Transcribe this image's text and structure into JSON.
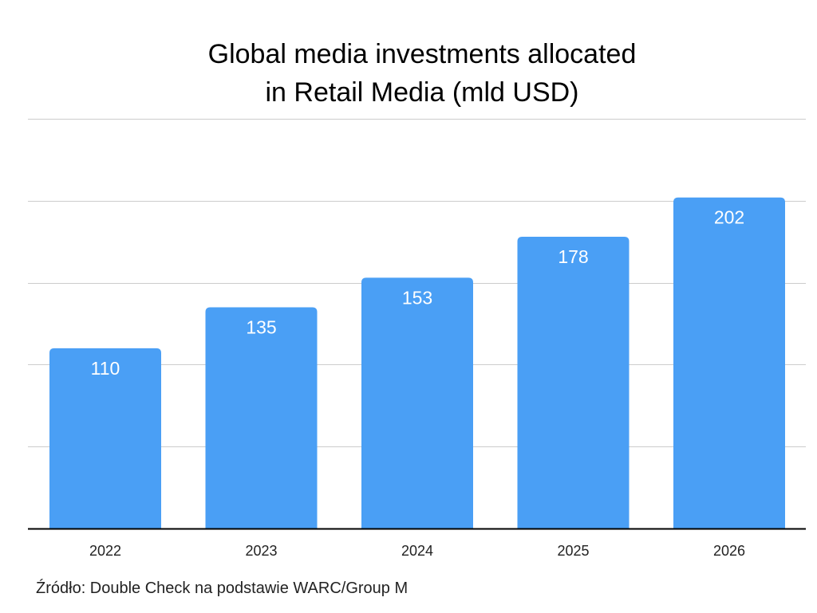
{
  "chart_data": {
    "type": "bar",
    "title": [
      "Global media investments allocated",
      "in Retail Media (mld USD)"
    ],
    "categories": [
      "2022",
      "2023",
      "2024",
      "2025",
      "2026"
    ],
    "values": [
      110,
      135,
      153,
      178,
      202
    ],
    "data_labels": [
      "110",
      "135",
      "153",
      "178",
      "202"
    ],
    "ylim": [
      0,
      250
    ],
    "gridlines": [
      50,
      100,
      150,
      200,
      250
    ],
    "grid": true,
    "legend": "none",
    "bar_color": "#4a9ff5",
    "label_color": "#ffffff",
    "grid_color": "#cccccc",
    "axis_color": "#000000"
  },
  "source": "Źródło: Double Check na podstawie WARC/Group M"
}
